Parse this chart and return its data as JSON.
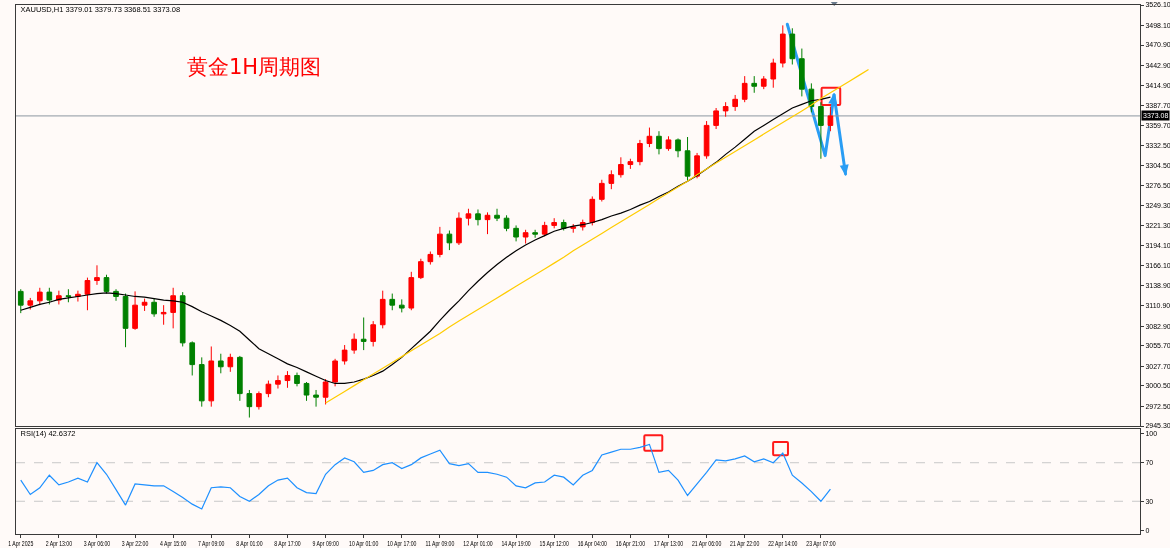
{
  "chart_data": [
    {
      "type": "candlestick",
      "title": "XAUUSD,H1 3379.01 3379.73 3368.51 3373.08",
      "annotations": [
        "黄金1H周期图"
      ],
      "categories": [
        null,
        null,
        null,
        null,
        null,
        null,
        null,
        null,
        null,
        null,
        null,
        null,
        null,
        null,
        null,
        null,
        null,
        null,
        null,
        null,
        null,
        null,
        null,
        null,
        null,
        null,
        null,
        null,
        null,
        null,
        null,
        null,
        null,
        null,
        null,
        null,
        null,
        null,
        null,
        null,
        null,
        null,
        null,
        null,
        null,
        null,
        null,
        null,
        null,
        null,
        null,
        null,
        null,
        null,
        null,
        null,
        null,
        null,
        null,
        null,
        null,
        null,
        null,
        null,
        null,
        null,
        null,
        null,
        null,
        null,
        null,
        null,
        null,
        null,
        null,
        null,
        null,
        null,
        null,
        null,
        null,
        null,
        null,
        null,
        null,
        null,
        null,
        null,
        null,
        null,
        null,
        null,
        null,
        null,
        null,
        null,
        null,
        null,
        null,
        null,
        null,
        null,
        null,
        null,
        null,
        null,
        null,
        null,
        null,
        null,
        null,
        null,
        null,
        null,
        null,
        null,
        null,
        null
      ],
      "ohlc": [
        [
          3131,
          3134,
          3101,
          3112
        ],
        [
          3112,
          3122,
          3106,
          3118
        ],
        [
          3118,
          3136,
          3112,
          3130
        ],
        [
          3130,
          3136,
          3113,
          3119
        ],
        [
          3119,
          3132,
          3113,
          3125
        ],
        [
          3125,
          3134,
          3116,
          3124
        ],
        [
          3124,
          3132,
          3117,
          3127
        ],
        [
          3127,
          3150,
          3105,
          3146
        ],
        [
          3146,
          3167,
          3140,
          3150
        ],
        [
          3150,
          3154,
          3128,
          3131
        ],
        [
          3131,
          3134,
          3118,
          3124
        ],
        [
          3124,
          3128,
          3054,
          3080
        ],
        [
          3080,
          3131,
          3078,
          3112
        ],
        [
          3112,
          3121,
          3104,
          3116
        ],
        [
          3116,
          3121,
          3096,
          3100
        ],
        [
          3100,
          3112,
          3085,
          3102
        ],
        [
          3102,
          3136,
          3080,
          3125
        ],
        [
          3125,
          3130,
          3055,
          3060
        ],
        [
          3060,
          3062,
          3015,
          3030
        ],
        [
          3030,
          3040,
          2972,
          2980
        ],
        [
          2980,
          3055,
          2972,
          3035
        ],
        [
          3035,
          3045,
          3018,
          3027
        ],
        [
          3027,
          3045,
          3020,
          3040
        ],
        [
          3040,
          3042,
          2980,
          2990
        ],
        [
          2990,
          2995,
          2957,
          2972
        ],
        [
          2972,
          2993,
          2968,
          2990
        ],
        [
          2990,
          3008,
          2985,
          3003
        ],
        [
          3003,
          3015,
          2997,
          3008
        ],
        [
          3008,
          3021,
          2998,
          3015
        ],
        [
          3015,
          3019,
          3000,
          3004
        ],
        [
          3004,
          3006,
          2980,
          2988
        ],
        [
          2988,
          2995,
          2972,
          2985
        ],
        [
          2985,
          3010,
          2975,
          3006
        ],
        [
          3006,
          3038,
          3000,
          3035
        ],
        [
          3035,
          3057,
          3030,
          3050
        ],
        [
          3050,
          3073,
          3045,
          3065
        ],
        [
          3065,
          3095,
          3050,
          3062
        ],
        [
          3062,
          3090,
          3055,
          3085
        ],
        [
          3085,
          3132,
          3080,
          3120
        ],
        [
          3120,
          3128,
          3105,
          3112
        ],
        [
          3112,
          3120,
          3102,
          3108
        ],
        [
          3108,
          3158,
          3105,
          3150
        ],
        [
          3150,
          3176,
          3148,
          3172
        ],
        [
          3172,
          3186,
          3168,
          3182
        ],
        [
          3182,
          3220,
          3178,
          3210
        ],
        [
          3210,
          3215,
          3188,
          3198
        ],
        [
          3198,
          3240,
          3195,
          3232
        ],
        [
          3232,
          3245,
          3222,
          3238
        ],
        [
          3238,
          3244,
          3222,
          3230
        ],
        [
          3230,
          3240,
          3210,
          3236
        ],
        [
          3236,
          3245,
          3228,
          3232
        ],
        [
          3232,
          3236,
          3214,
          3218
        ],
        [
          3218,
          3222,
          3200,
          3206
        ],
        [
          3206,
          3216,
          3197,
          3212
        ],
        [
          3212,
          3216,
          3205,
          3210
        ],
        [
          3210,
          3227,
          3207,
          3222
        ],
        [
          3222,
          3232,
          3218,
          3226
        ],
        [
          3226,
          3230,
          3215,
          3218
        ],
        [
          3218,
          3224,
          3212,
          3220
        ],
        [
          3220,
          3230,
          3215,
          3226
        ],
        [
          3226,
          3262,
          3222,
          3258
        ],
        [
          3258,
          3285,
          3255,
          3280
        ],
        [
          3280,
          3298,
          3272,
          3292
        ],
        [
          3292,
          3316,
          3288,
          3306
        ],
        [
          3306,
          3314,
          3300,
          3310
        ],
        [
          3310,
          3340,
          3305,
          3335
        ],
        [
          3335,
          3357,
          3330,
          3345
        ],
        [
          3345,
          3352,
          3320,
          3328
        ],
        [
          3328,
          3345,
          3325,
          3340
        ],
        [
          3340,
          3342,
          3316,
          3325
        ],
        [
          3325,
          3344,
          3284,
          3290
        ],
        [
          3290,
          3322,
          3287,
          3318
        ],
        [
          3318,
          3366,
          3314,
          3360
        ],
        [
          3360,
          3384,
          3355,
          3380
        ],
        [
          3380,
          3392,
          3372,
          3386
        ],
        [
          3386,
          3402,
          3380,
          3396
        ],
        [
          3396,
          3428,
          3392,
          3418
        ],
        [
          3418,
          3428,
          3405,
          3414
        ],
        [
          3414,
          3428,
          3410,
          3424
        ],
        [
          3424,
          3452,
          3412,
          3446
        ],
        [
          3446,
          3498,
          3440,
          3486
        ],
        [
          3486,
          3494,
          3444,
          3452
        ],
        [
          3452,
          3466,
          3400,
          3410
        ],
        [
          3410,
          3418,
          3378,
          3386
        ],
        [
          3386,
          3392,
          3314,
          3360
        ],
        [
          3360,
          3386,
          3352,
          3373.08
        ],
        null,
        null,
        null,
        null,
        null,
        null,
        null,
        null,
        null,
        null,
        null,
        null,
        null,
        null,
        null,
        null,
        null,
        null,
        null,
        null,
        null,
        null,
        null,
        null,
        null,
        null,
        null,
        null,
        null,
        null,
        null,
        null
      ],
      "colors": [
        "#008000",
        "#ff0000",
        "#ff0000",
        "#008000",
        "#ff0000",
        "#008000",
        "#ff0000",
        "#ff0000",
        "#ff0000",
        "#008000",
        "#008000",
        "#008000",
        "#ff0000",
        "#ff0000",
        "#008000",
        "#ff0000",
        "#ff0000",
        "#008000",
        "#008000",
        "#008000",
        "#ff0000",
        "#008000",
        "#ff0000",
        "#008000",
        "#008000",
        "#ff0000",
        "#ff0000",
        "#ff0000",
        "#ff0000",
        "#008000",
        "#008000",
        "#008000",
        "#ff0000",
        "#ff0000",
        "#ff0000",
        "#ff0000",
        "#008000",
        "#ff0000",
        "#ff0000",
        "#008000",
        "#008000",
        "#ff0000",
        "#ff0000",
        "#ff0000",
        "#ff0000",
        "#008000",
        "#ff0000",
        "#ff0000",
        "#008000",
        "#ff0000",
        "#008000",
        "#008000",
        "#008000",
        "#ff0000",
        "#008000",
        "#ff0000",
        "#ff0000",
        "#008000",
        "#ff0000",
        "#ff0000",
        "#ff0000",
        "#ff0000",
        "#ff0000",
        "#ff0000",
        "#ff0000",
        "#ff0000",
        "#ff0000",
        "#008000",
        "#ff0000",
        "#008000",
        "#008000",
        "#ff0000",
        "#ff0000",
        "#ff0000",
        "#ff0000",
        "#ff0000",
        "#ff0000",
        "#008000",
        "#ff0000",
        "#ff0000",
        "#ff0000",
        "#008000",
        "#008000",
        "#008000",
        "#008000",
        "#ff0000",
        null,
        null,
        null,
        null,
        null,
        null,
        null,
        null,
        null,
        null,
        null,
        null,
        null,
        null,
        null,
        null,
        null,
        null,
        null,
        null,
        null,
        null,
        null,
        null,
        null,
        null,
        null,
        null,
        null,
        null,
        null,
        null
      ],
      "series": [
        {
          "type": "line",
          "color": "#000000",
          "values": [
            3105,
            3109,
            3113,
            3116,
            3120,
            3122,
            3124,
            3126,
            3128,
            3129,
            3128,
            3126,
            3124,
            3123,
            3121,
            3119,
            3118,
            3116,
            3110,
            3103,
            3097,
            3091,
            3084,
            3076,
            3064,
            3052,
            3045,
            3038,
            3031,
            3026,
            3020,
            3014,
            3008,
            3004,
            3004,
            3006,
            3010,
            3015,
            3021,
            3030,
            3040,
            3052,
            3064,
            3076,
            3091,
            3105,
            3118,
            3132,
            3145,
            3157,
            3168,
            3178,
            3187,
            3195,
            3202,
            3208,
            3214,
            3218,
            3221,
            3223,
            3226,
            3230,
            3235,
            3239,
            3244,
            3250,
            3255,
            3262,
            3268,
            3276,
            3283,
            3291,
            3300,
            3309,
            3320,
            3330,
            3341,
            3352,
            3360,
            3368,
            3376,
            3384,
            3389,
            3394,
            3396,
            3399,
            null,
            null,
            null,
            null,
            null,
            null,
            null,
            null,
            null,
            null,
            null,
            null,
            null,
            null,
            null,
            null,
            null,
            null,
            null,
            null,
            null,
            null,
            null,
            null,
            null,
            null,
            null,
            null,
            null,
            null,
            null,
            null
          ]
        },
        {
          "type": "line",
          "color": "#ffcc00",
          "values": [
            null,
            null,
            null,
            null,
            null,
            null,
            null,
            null,
            null,
            null,
            null,
            null,
            null,
            null,
            null,
            null,
            null,
            null,
            null,
            null,
            null,
            null,
            null,
            null,
            null,
            null,
            null,
            null,
            null,
            null,
            null,
            null,
            2977,
            2985,
            2993,
            3001,
            3009,
            3017,
            3025,
            3033,
            3041,
            3049,
            3057,
            3065,
            3073,
            3082,
            3090,
            3098,
            3106,
            3114,
            3122,
            3130,
            3138,
            3146,
            3154,
            3162,
            3170,
            3178,
            3187,
            3195,
            3203,
            3211,
            3219,
            3227,
            3235,
            3243,
            3251,
            3259,
            3267,
            3275,
            3283,
            3292,
            3300,
            3308,
            3316,
            3324,
            3332,
            3340,
            3348,
            3356,
            3364,
            3372,
            3380,
            3388,
            3397,
            3405,
            3413,
            3421,
            3429,
            3437,
            null,
            null,
            null,
            null,
            null,
            null,
            null,
            null,
            null,
            null,
            null,
            null,
            null,
            null,
            null,
            null,
            null,
            null,
            null,
            null,
            null,
            null,
            null,
            null,
            null,
            null,
            null,
            null
          ]
        }
      ],
      "ylim": [
        2945.3,
        3526.1
      ],
      "yticks": [
        {
          "value": 3526.1,
          "label": "3526.10"
        },
        {
          "value": 3498.1,
          "label": "3498.10"
        },
        {
          "value": 3470.9,
          "label": "3470.90"
        },
        {
          "value": 3442.9,
          "label": "3442.90"
        },
        {
          "value": 3414.9,
          "label": "3414.90"
        },
        {
          "value": 3387.7,
          "label": "3387.70"
        },
        {
          "value": 3359.7,
          "label": "3359.70"
        },
        {
          "value": 3332.5,
          "label": "3332.50"
        },
        {
          "value": 3304.5,
          "label": "3304.50"
        },
        {
          "value": 3276.5,
          "label": "3276.50"
        },
        {
          "value": 3249.3,
          "label": "3249.30"
        },
        {
          "value": 3221.3,
          "label": "3221.30"
        },
        {
          "value": 3194.1,
          "label": "3194.10"
        },
        {
          "value": 3166.1,
          "label": "3166.10"
        },
        {
          "value": 3138.9,
          "label": "3138.90"
        },
        {
          "value": 3110.9,
          "label": "3110.90"
        },
        {
          "value": 3082.9,
          "label": "3082.90"
        },
        {
          "value": 3055.7,
          "label": "3055.70"
        },
        {
          "value": 3027.7,
          "label": "3027.70"
        },
        {
          "value": 3000.5,
          "label": "3000.50"
        },
        {
          "value": 2972.5,
          "label": "2972.50"
        },
        {
          "value": 2945.3,
          "label": "2945.30"
        }
      ],
      "ref_lines": [
        {
          "axis": "y",
          "value": 3373.08,
          "label": "3373.08",
          "color": "#8c96a0"
        }
      ],
      "tick_labels": "y"
    },
    {
      "type": "line",
      "title": "RSI(14) 42.6372",
      "categories": [
        "1 Apr 2025",
        null,
        null,
        null,
        "2 Apr 13:00",
        null,
        null,
        null,
        "3 Apr 06:00",
        null,
        null,
        null,
        "3 Apr 22:00",
        null,
        null,
        null,
        "4 Apr 15:00",
        null,
        null,
        null,
        "7 Apr 09:00",
        null,
        null,
        null,
        "8 Apr 01:00",
        null,
        null,
        null,
        "8 Apr 17:00",
        null,
        null,
        null,
        "9 Apr 09:00",
        null,
        null,
        null,
        "10 Apr 01:00",
        null,
        null,
        null,
        "10 Apr 17:00",
        null,
        null,
        null,
        "11 Apr 09:00",
        null,
        null,
        null,
        "12 Apr 01:00",
        null,
        null,
        null,
        "14 Apr 19:00",
        null,
        null,
        null,
        "15 Apr 12:00",
        null,
        null,
        null,
        "16 Apr 04:00",
        null,
        null,
        null,
        "16 Apr 21:00",
        null,
        null,
        null,
        "17 Apr 13:00",
        null,
        null,
        null,
        "21 Apr 06:00",
        null,
        null,
        null,
        "21 Apr 22:00",
        null,
        null,
        null,
        "22 Apr 14:00",
        null,
        null,
        null,
        "23 Apr 07:00",
        null,
        null,
        null,
        null,
        null,
        null,
        null,
        null,
        null,
        null,
        null,
        null,
        null,
        null,
        null,
        null,
        null,
        null,
        null,
        null,
        null,
        null,
        null,
        null,
        null,
        null,
        null,
        null,
        null,
        null,
        null,
        null,
        null
      ],
      "series": [
        {
          "color": "#1e90ff",
          "values": [
            52,
            37,
            44,
            57,
            47,
            50,
            54,
            50,
            70,
            58,
            42,
            26,
            48,
            47,
            46,
            46,
            40,
            34,
            27,
            22,
            44,
            45,
            44,
            35,
            30,
            37,
            46,
            52,
            54,
            44,
            39,
            38,
            58,
            68,
            75,
            71,
            60,
            62,
            68,
            70,
            64,
            68,
            75,
            79,
            83,
            69,
            67,
            69,
            60,
            60,
            58,
            55,
            46,
            44,
            49,
            50,
            57,
            55,
            47,
            57,
            62,
            78,
            81,
            84,
            84,
            86,
            89,
            60,
            62,
            52,
            36,
            48,
            60,
            73,
            72,
            74,
            77,
            71,
            74,
            70,
            80,
            57,
            49,
            40,
            30,
            42.6372,
            null,
            null,
            null,
            null,
            null,
            null,
            null,
            null,
            null,
            null,
            null,
            null,
            null,
            null,
            null,
            null,
            null,
            null,
            null,
            null,
            null,
            null,
            null,
            null,
            null,
            null,
            null,
            null,
            null,
            null,
            null,
            null
          ]
        }
      ],
      "ylim": [
        -4,
        105
      ],
      "yticks": [
        0,
        30,
        70,
        100
      ],
      "ref_lines": [
        {
          "axis": "y",
          "value": 70,
          "line_style": "dashed",
          "color": "#c8c8c8"
        },
        {
          "axis": "y",
          "value": 30,
          "line_style": "dashed",
          "color": "#c8c8c8"
        }
      ]
    }
  ]
}
